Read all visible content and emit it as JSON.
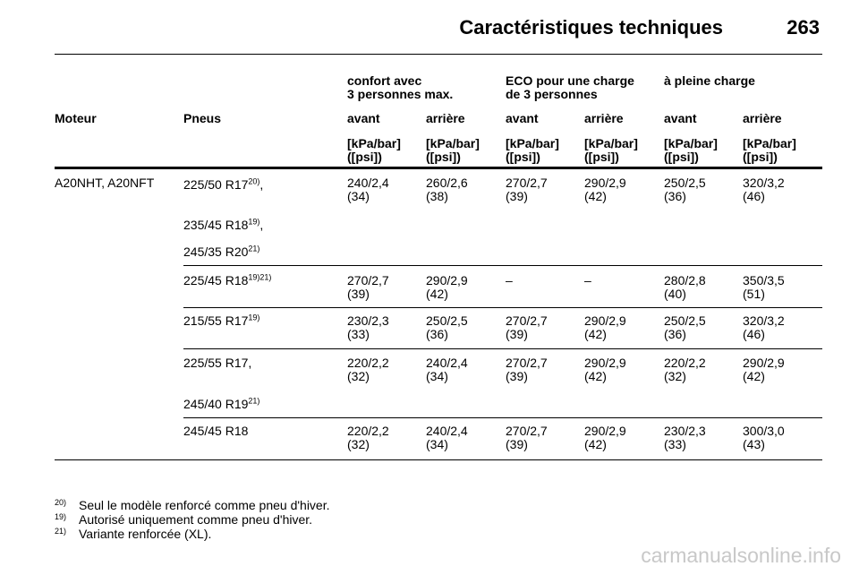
{
  "header": {
    "title": "Caractéristiques techniques",
    "page_number": "263"
  },
  "table": {
    "groups": [
      {
        "line1": "confort avec",
        "line2": "3 personnes max."
      },
      {
        "line1": "ECO pour une charge",
        "line2": "de 3 personnes"
      },
      {
        "line1": "à pleine charge",
        "line2": ""
      }
    ],
    "col_moteur": "Moteur",
    "col_pneus": "Pneus",
    "sub_headers": [
      "avant",
      "arrière",
      "avant",
      "arrière",
      "avant",
      "arrière"
    ],
    "unit_line1": "[kPa/bar]",
    "unit_line2": "([psi])",
    "moteur": "A20NHT, A20NFT",
    "rows": [
      {
        "tyres": [
          {
            "size": "225/50 R17",
            "sup": "20)",
            "suffix": ","
          },
          {
            "size": "235/45 R18",
            "sup": "19)",
            "suffix": ","
          },
          {
            "size": "245/35 R20",
            "sup": "21)",
            "suffix": ""
          }
        ],
        "values": [
          [
            "240/2,4",
            "(34)"
          ],
          [
            "260/2,6",
            "(38)"
          ],
          [
            "270/2,7",
            "(39)"
          ],
          [
            "290/2,9",
            "(42)"
          ],
          [
            "250/2,5",
            "(36)"
          ],
          [
            "320/3,2",
            "(46)"
          ]
        ]
      },
      {
        "tyres": [
          {
            "size": "225/45 R18",
            "sup": "19)21)",
            "suffix": ""
          }
        ],
        "values": [
          [
            "270/2,7",
            "(39)"
          ],
          [
            "290/2,9",
            "(42)"
          ],
          [
            "–",
            ""
          ],
          [
            "–",
            ""
          ],
          [
            "280/2,8",
            "(40)"
          ],
          [
            "350/3,5",
            "(51)"
          ]
        ]
      },
      {
        "tyres": [
          {
            "size": "215/55 R17",
            "sup": "19)",
            "suffix": ""
          }
        ],
        "values": [
          [
            "230/2,3",
            "(33)"
          ],
          [
            "250/2,5",
            "(36)"
          ],
          [
            "270/2,7",
            "(39)"
          ],
          [
            "290/2,9",
            "(42)"
          ],
          [
            "250/2,5",
            "(36)"
          ],
          [
            "320/3,2",
            "(46)"
          ]
        ]
      },
      {
        "tyres": [
          {
            "size": "225/55 R17,",
            "sup": "",
            "suffix": ""
          },
          {
            "size": "245/40 R19",
            "sup": "21)",
            "suffix": ""
          }
        ],
        "values": [
          [
            "220/2,2",
            "(32)"
          ],
          [
            "240/2,4",
            "(34)"
          ],
          [
            "270/2,7",
            "(39)"
          ],
          [
            "290/2,9",
            "(42)"
          ],
          [
            "220/2,2",
            "(32)"
          ],
          [
            "290/2,9",
            "(42)"
          ]
        ]
      },
      {
        "tyres": [
          {
            "size": "245/45 R18",
            "sup": "",
            "suffix": ""
          }
        ],
        "values": [
          [
            "220/2,2",
            "(32)"
          ],
          [
            "240/2,4",
            "(34)"
          ],
          [
            "270/2,7",
            "(39)"
          ],
          [
            "290/2,9",
            "(42)"
          ],
          [
            "230/2,3",
            "(33)"
          ],
          [
            "300/3,0",
            "(43)"
          ]
        ]
      }
    ]
  },
  "footnotes": [
    {
      "num": "20)",
      "text": "Seul le modèle renforcé comme pneu d'hiver."
    },
    {
      "num": "19)",
      "text": "Autorisé uniquement comme pneu d'hiver."
    },
    {
      "num": "21)",
      "text": "Variante renforcée (XL)."
    }
  ],
  "watermark": "carmanualsonline.info"
}
